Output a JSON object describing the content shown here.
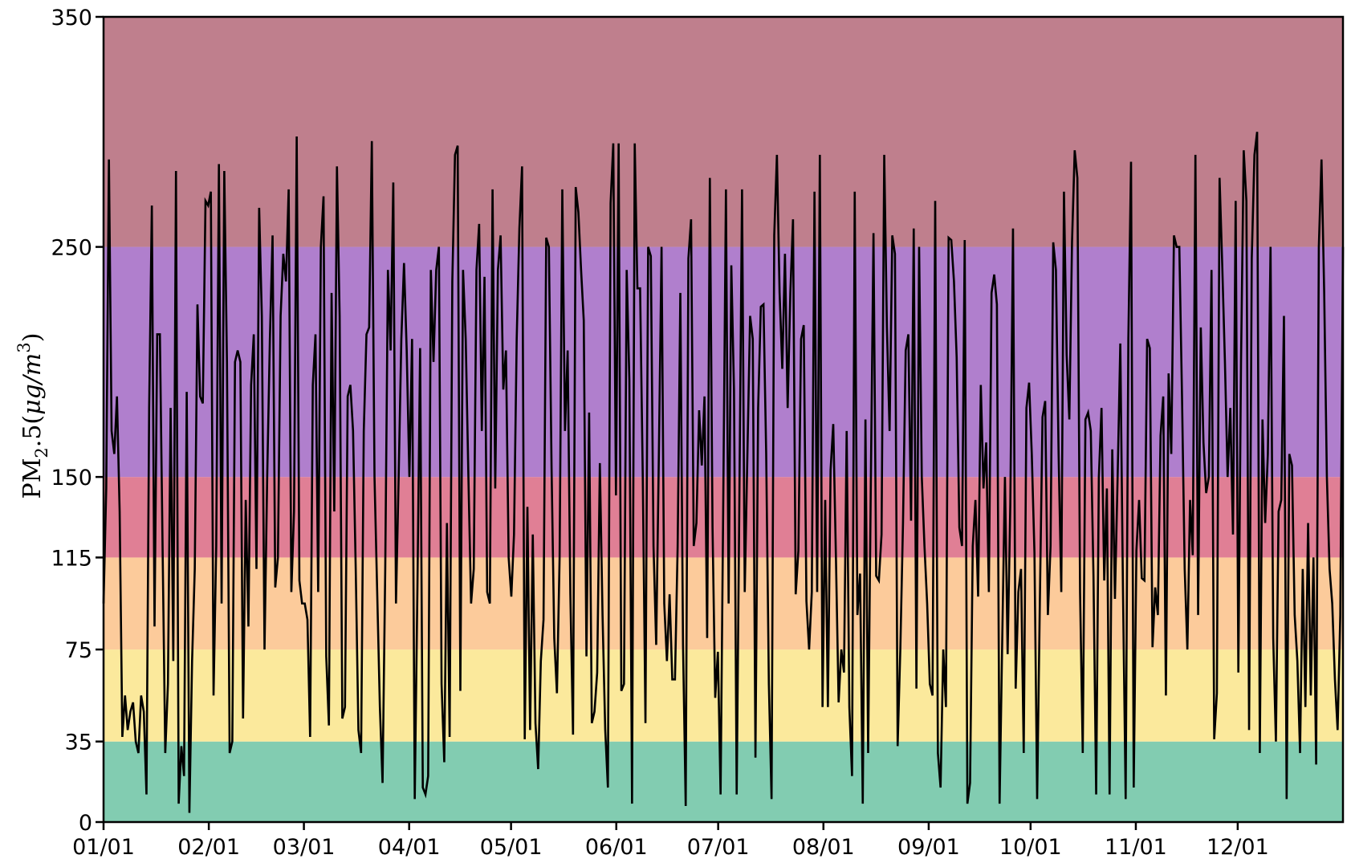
{
  "chart_data": {
    "type": "line",
    "title": "",
    "xlabel": "",
    "ylabel": {
      "base": "PM",
      "sub": "2",
      "mid": ".5(",
      "unit": "μg/m",
      "sup": "3",
      "end": ")"
    },
    "ylim": [
      0,
      350
    ],
    "y_ticks": [
      0,
      35,
      75,
      115,
      150,
      250,
      350
    ],
    "x_tick_labels": [
      "01/01",
      "02/01",
      "03/01",
      "04/01",
      "05/01",
      "06/01",
      "07/01",
      "08/01",
      "09/01",
      "10/01",
      "11/01",
      "12/01"
    ],
    "x_tick_days": [
      0,
      31,
      59,
      90,
      120,
      151,
      181,
      212,
      243,
      273,
      304,
      334
    ],
    "xlim_days": [
      0,
      365
    ],
    "bands": [
      {
        "from": 0,
        "to": 35,
        "color": "#82ccb1"
      },
      {
        "from": 35,
        "to": 75,
        "color": "#fbe99c"
      },
      {
        "from": 75,
        "to": 115,
        "color": "#fccb9b"
      },
      {
        "from": 115,
        "to": 150,
        "color": "#e07f95"
      },
      {
        "from": 150,
        "to": 250,
        "color": "#b07fcd"
      },
      {
        "from": 250,
        "to": 350,
        "color": "#bf7f8d"
      }
    ],
    "series": [
      {
        "name": "PM2.5",
        "color": "#000000",
        "values": [
          95,
          145,
          288,
          170,
          160,
          185,
          135,
          37,
          55,
          40,
          48,
          52,
          35,
          30,
          55,
          48,
          12,
          180,
          268,
          85,
          212,
          212,
          120,
          30,
          60,
          180,
          70,
          283,
          8,
          33,
          20,
          187,
          4,
          70,
          110,
          225,
          185,
          182,
          270,
          268,
          274,
          55,
          120,
          286,
          95,
          283,
          200,
          30,
          35,
          200,
          205,
          200,
          45,
          140,
          85,
          190,
          212,
          110,
          267,
          220,
          75,
          150,
          210,
          255,
          102,
          115,
          220,
          247,
          235,
          275,
          100,
          135,
          298,
          105,
          95,
          95,
          88,
          37,
          190,
          212,
          100,
          250,
          272,
          72,
          42,
          230,
          135,
          285,
          220,
          45,
          50,
          185,
          190,
          170,
          110,
          40,
          30,
          170,
          212,
          215,
          296,
          150,
          100,
          50,
          17,
          110,
          240,
          205,
          278,
          95,
          150,
          210,
          243,
          205,
          150,
          210,
          10,
          102,
          206,
          15,
          12,
          20,
          240,
          200,
          240,
          250,
          60,
          26,
          130,
          37,
          235,
          290,
          294,
          57,
          240,
          210,
          150,
          95,
          110,
          240,
          260,
          170,
          237,
          100,
          95,
          275,
          145,
          240,
          255,
          188,
          205,
          115,
          98,
          125,
          210,
          258,
          285,
          36,
          137,
          40,
          125,
          43,
          23,
          70,
          88,
          254,
          250,
          154,
          80,
          56,
          115,
          275,
          170,
          205,
          99,
          38,
          276,
          265,
          240,
          218,
          72,
          178,
          43,
          48,
          65,
          156,
          90,
          40,
          15,
          269,
          295,
          142,
          295,
          57,
          60,
          240,
          192,
          8,
          295,
          232,
          232,
          150,
          43,
          250,
          246,
          120,
          77,
          160,
          250,
          95,
          70,
          99,
          62,
          62,
          120,
          230,
          77,
          7,
          245,
          262,
          120,
          130,
          179,
          155,
          185,
          80,
          280,
          128,
          54,
          74,
          12,
          140,
          275,
          95,
          242,
          188,
          12,
          140,
          275,
          100,
          160,
          220,
          210,
          28,
          180,
          224,
          225,
          160,
          60,
          10,
          255,
          290,
          230,
          197,
          247,
          180,
          230,
          262,
          99,
          118,
          210,
          216,
          96,
          75,
          100,
          274,
          100,
          290,
          50,
          140,
          50,
          153,
          173,
          115,
          52,
          75,
          65,
          170,
          50,
          20,
          274,
          90,
          108,
          8,
          175,
          30,
          147,
          256,
          107,
          105,
          125,
          290,
          215,
          170,
          255,
          247,
          33,
          75,
          130,
          205,
          212,
          131,
          258,
          58,
          250,
          150,
          120,
          95,
          60,
          55,
          270,
          30,
          15,
          75,
          50,
          254,
          253,
          235,
          202,
          128,
          120,
          253,
          8,
          17,
          120,
          140,
          98,
          190,
          145,
          165,
          100,
          230,
          238,
          225,
          8,
          80,
          150,
          73,
          138,
          258,
          58,
          100,
          110,
          30,
          180,
          191,
          160,
          117,
          10,
          95,
          176,
          183,
          90,
          120,
          252,
          240,
          160,
          100,
          274,
          203,
          175,
          252,
          292,
          280,
          100,
          30,
          175,
          178,
          170,
          107,
          12,
          150,
          180,
          105,
          145,
          12,
          162,
          97,
          150,
          208,
          100,
          10,
          210,
          287,
          15,
          118,
          140,
          106,
          105,
          210,
          206,
          76,
          102,
          90,
          168,
          185,
          55,
          195,
          160,
          255,
          250,
          250,
          185,
          110,
          75,
          140,
          116,
          290,
          90,
          215,
          165,
          143,
          150,
          240,
          36,
          56,
          280,
          242,
          200,
          150,
          180,
          125,
          270,
          65,
          200,
          292,
          270,
          40,
          245,
          290,
          300,
          30,
          175,
          130,
          160,
          250,
          80,
          35,
          135,
          140,
          220,
          10,
          160,
          155,
          90,
          70,
          30,
          110,
          50,
          130,
          55,
          115,
          25,
          250,
          288,
          230,
          150,
          110,
          95,
          62,
          40,
          90,
          250
        ]
      }
    ]
  }
}
